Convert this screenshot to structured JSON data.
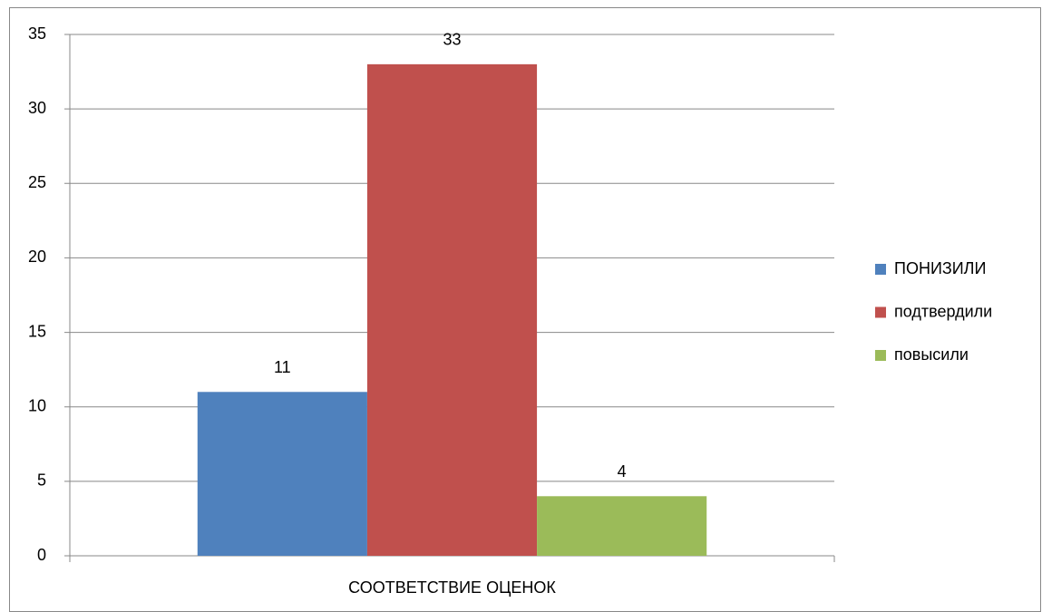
{
  "chart_data": {
    "type": "bar",
    "categories": [
      "СООТВЕТСТВИЕ ОЦЕНОК"
    ],
    "series": [
      {
        "name": "ПОНИЗИЛИ",
        "color": "#4f81bd",
        "values": [
          11
        ]
      },
      {
        "name": "подтвердили",
        "color": "#c0504d",
        "values": [
          33
        ]
      },
      {
        "name": "повысили",
        "color": "#9bbb59",
        "values": [
          4
        ]
      }
    ],
    "ylim": [
      0,
      35
    ],
    "yticks": [
      0,
      5,
      10,
      15,
      20,
      25,
      30,
      35
    ],
    "grid": true,
    "legend": "right"
  }
}
